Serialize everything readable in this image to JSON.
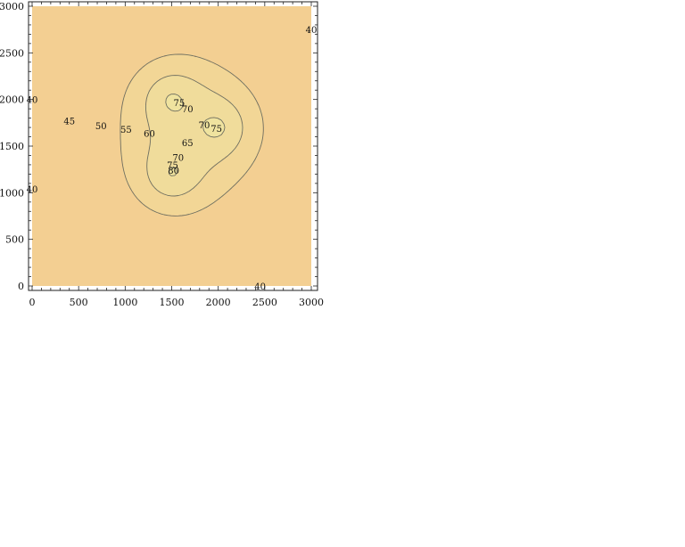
{
  "chart_data": {
    "type": "contour",
    "x_ticks": [
      "0",
      "500",
      "1000",
      "1500",
      "2000",
      "2500",
      "3000"
    ],
    "y_ticks": [
      "0",
      "500",
      "1000",
      "1500",
      "2000",
      "2500",
      "3000"
    ],
    "xlim": [
      0,
      3000
    ],
    "ylim": [
      0,
      3000
    ],
    "sources": [
      {
        "x": 1500,
        "y": 2000
      },
      {
        "x": 2000,
        "y": 1700
      },
      {
        "x": 1500,
        "y": 1200
      }
    ],
    "levels": [
      40,
      45,
      50,
      55,
      60,
      65,
      70,
      75,
      80
    ],
    "contour_labels": [
      {
        "text": "40",
        "x": 3000,
        "y": 2750
      },
      {
        "text": "40",
        "x": 0,
        "y": 2000
      },
      {
        "text": "40",
        "x": 0,
        "y": 1040
      },
      {
        "text": "40",
        "x": 2450,
        "y": 0
      },
      {
        "text": "45",
        "x": 400,
        "y": 1770
      },
      {
        "text": "50",
        "x": 740,
        "y": 1720
      },
      {
        "text": "55",
        "x": 1010,
        "y": 1680
      },
      {
        "text": "60",
        "x": 1260,
        "y": 1640
      },
      {
        "text": "65",
        "x": 1670,
        "y": 1540
      },
      {
        "text": "70",
        "x": 1850,
        "y": 1730
      },
      {
        "text": "70",
        "x": 1670,
        "y": 1900
      },
      {
        "text": "70",
        "x": 1570,
        "y": 1380
      },
      {
        "text": "75",
        "x": 1580,
        "y": 1970
      },
      {
        "text": "75",
        "x": 1980,
        "y": 1690
      },
      {
        "text": "75",
        "x": 1510,
        "y": 1300
      },
      {
        "text": "80",
        "x": 1520,
        "y": 1240
      }
    ],
    "colors": {
      "low": "#f3cf92",
      "high": "#79b8ee",
      "contour_line": "#6f6f60"
    },
    "grid": false
  }
}
